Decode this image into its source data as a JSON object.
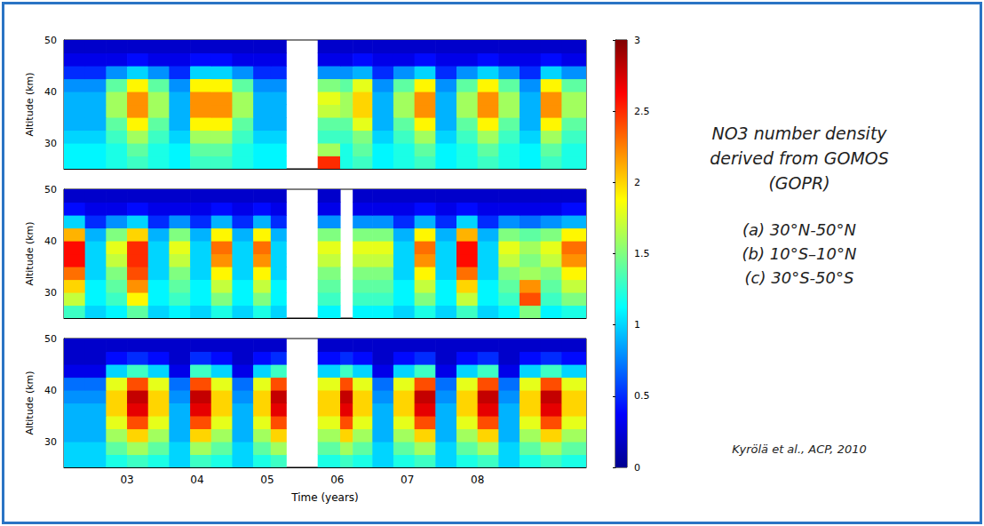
{
  "chart_data": {
    "type": "heatmap",
    "title": "NO3 number density derived from GOMOS (GOPR)",
    "annotations": [
      "Kyrölä et al., ACP, 2010"
    ],
    "xlabel": "Time (years)",
    "ylabel": "Altitude (km)",
    "xlim": [
      2.1,
      9.55
    ],
    "xticks": [
      {
        "value": 3,
        "label": "03"
      },
      {
        "value": 4,
        "label": "04"
      },
      {
        "value": 5,
        "label": "05"
      },
      {
        "value": 6,
        "label": "06"
      },
      {
        "value": 7,
        "label": "07"
      },
      {
        "value": 8,
        "label": "08"
      }
    ],
    "ylim": [
      25,
      50
    ],
    "yticks": [
      30,
      40,
      50
    ],
    "x_edges": [
      2.1,
      2.4,
      2.7,
      3.0,
      3.3,
      3.6,
      3.9,
      4.2,
      4.5,
      4.8,
      5.05,
      5.27,
      5.72,
      6.04,
      6.22,
      6.5,
      6.8,
      7.1,
      7.4,
      7.7,
      8.0,
      8.3,
      8.6,
      8.9,
      9.2,
      9.55
    ],
    "y_edges": [
      25,
      27.5,
      30,
      32.5,
      35,
      37.5,
      40,
      42.5,
      45,
      47.5,
      50
    ],
    "colorbar": {
      "range": [
        0,
        3
      ],
      "ticks": [
        0,
        0.5,
        1,
        1.5,
        2,
        2.5,
        3
      ]
    },
    "panels": [
      {
        "name": "(a) 30°N-50°N",
        "values": [
          [
            1.1,
            1.1,
            1.2,
            1.3,
            1.2,
            1.1,
            1.3,
            1.3,
            1.2,
            1.1,
            1.1,
            null,
            2.5,
            1.2,
            1.3,
            1.1,
            1.2,
            1.3,
            1.1,
            1.2,
            1.3,
            1.2,
            1.1,
            1.3,
            1.2
          ],
          [
            1.1,
            1.1,
            1.2,
            1.4,
            1.2,
            1.1,
            1.4,
            1.4,
            1.2,
            1.1,
            1.1,
            null,
            1.6,
            1.2,
            1.4,
            1.1,
            1.2,
            1.4,
            1.1,
            1.2,
            1.4,
            1.2,
            1.1,
            1.4,
            1.2
          ],
          [
            1.0,
            1.0,
            1.3,
            1.6,
            1.3,
            1.0,
            1.6,
            1.6,
            1.3,
            1.0,
            1.0,
            null,
            1.3,
            1.3,
            1.5,
            1.0,
            1.3,
            1.6,
            1.0,
            1.3,
            1.6,
            1.3,
            1.0,
            1.6,
            1.3
          ],
          [
            0.9,
            0.9,
            1.4,
            1.9,
            1.4,
            0.9,
            1.9,
            1.9,
            1.4,
            0.9,
            0.9,
            null,
            1.4,
            1.4,
            1.8,
            0.9,
            1.4,
            1.9,
            0.9,
            1.4,
            1.9,
            1.4,
            0.9,
            1.9,
            1.4
          ],
          [
            0.9,
            0.9,
            1.6,
            2.2,
            1.6,
            0.9,
            2.2,
            2.2,
            1.6,
            0.9,
            0.9,
            null,
            1.7,
            1.6,
            2.0,
            0.9,
            1.6,
            2.2,
            0.9,
            1.6,
            2.2,
            1.6,
            0.9,
            2.2,
            1.6
          ],
          [
            0.9,
            0.9,
            1.6,
            2.2,
            1.6,
            0.9,
            2.2,
            2.2,
            1.6,
            0.9,
            0.9,
            null,
            1.8,
            1.6,
            2.0,
            0.9,
            1.6,
            2.2,
            0.9,
            1.6,
            2.2,
            1.6,
            0.9,
            2.2,
            1.6
          ],
          [
            0.8,
            0.8,
            1.4,
            1.9,
            1.4,
            0.8,
            1.9,
            1.9,
            1.4,
            0.8,
            0.8,
            null,
            1.5,
            1.4,
            1.8,
            0.8,
            1.4,
            1.9,
            0.8,
            1.4,
            1.9,
            1.4,
            0.8,
            1.9,
            1.4
          ],
          [
            0.5,
            0.5,
            0.8,
            1.0,
            0.8,
            0.5,
            1.0,
            1.0,
            0.8,
            0.5,
            0.5,
            null,
            0.8,
            0.8,
            0.9,
            0.5,
            0.8,
            1.0,
            0.5,
            0.8,
            1.0,
            0.8,
            0.5,
            1.0,
            0.8
          ],
          [
            0.3,
            0.3,
            0.3,
            0.4,
            0.3,
            0.3,
            0.4,
            0.4,
            0.3,
            0.3,
            0.3,
            null,
            0.3,
            0.3,
            0.4,
            0.3,
            0.3,
            0.4,
            0.3,
            0.3,
            0.4,
            0.3,
            0.3,
            0.4,
            0.3
          ],
          [
            0.2,
            0.2,
            0.2,
            0.2,
            0.2,
            0.2,
            0.2,
            0.2,
            0.2,
            0.2,
            0.2,
            null,
            0.2,
            0.2,
            0.2,
            0.2,
            0.2,
            0.2,
            0.2,
            0.2,
            0.2,
            0.2,
            0.2,
            0.2,
            0.2
          ]
        ]
      },
      {
        "name": "(b) 10°S–10°N",
        "values": [
          [
            1.3,
            1.0,
            1.1,
            1.4,
            1.0,
            1.1,
            1.0,
            1.2,
            1.0,
            1.2,
            1.0,
            null,
            1.1,
            null,
            1.1,
            1.1,
            1.0,
            1.2,
            1.0,
            1.3,
            1.0,
            1.1,
            1.5,
            1.1,
            1.2
          ],
          [
            1.7,
            1.1,
            1.3,
            1.9,
            1.1,
            1.3,
            1.1,
            1.5,
            1.1,
            1.5,
            1.1,
            null,
            1.3,
            null,
            1.3,
            1.3,
            1.1,
            1.5,
            1.1,
            1.7,
            1.1,
            1.3,
            2.4,
            1.3,
            1.5
          ],
          [
            2.0,
            1.1,
            1.4,
            2.2,
            1.1,
            1.4,
            1.1,
            1.7,
            1.1,
            1.7,
            1.1,
            null,
            1.4,
            null,
            1.4,
            1.4,
            1.1,
            1.7,
            1.1,
            2.0,
            1.1,
            1.4,
            2.2,
            1.4,
            1.7
          ],
          [
            2.3,
            1.0,
            1.5,
            2.4,
            1.0,
            1.5,
            1.0,
            1.9,
            1.0,
            1.9,
            1.0,
            null,
            1.5,
            null,
            1.5,
            1.5,
            1.0,
            1.9,
            1.0,
            2.3,
            1.0,
            1.5,
            1.6,
            1.5,
            1.9
          ],
          [
            2.6,
            1.0,
            1.7,
            2.5,
            1.0,
            1.7,
            1.0,
            2.2,
            1.0,
            2.2,
            1.0,
            null,
            1.7,
            null,
            1.7,
            1.7,
            1.0,
            2.2,
            1.0,
            2.6,
            1.0,
            1.7,
            1.5,
            1.7,
            2.2
          ],
          [
            2.6,
            1.0,
            1.8,
            2.5,
            1.0,
            1.8,
            1.0,
            2.3,
            1.0,
            2.3,
            1.0,
            null,
            1.8,
            null,
            1.8,
            1.8,
            1.0,
            2.3,
            1.0,
            2.6,
            1.0,
            1.8,
            1.6,
            1.8,
            2.3
          ],
          [
            2.1,
            0.9,
            1.5,
            2.0,
            0.9,
            1.5,
            0.9,
            1.9,
            0.9,
            1.9,
            0.9,
            null,
            1.5,
            null,
            1.5,
            1.5,
            0.9,
            1.9,
            0.9,
            2.1,
            0.9,
            1.5,
            1.4,
            1.5,
            1.9
          ],
          [
            1.0,
            0.5,
            0.8,
            1.0,
            0.5,
            0.8,
            0.5,
            0.9,
            0.5,
            0.9,
            0.5,
            null,
            0.8,
            null,
            0.8,
            0.8,
            0.5,
            0.9,
            0.5,
            1.0,
            0.5,
            0.8,
            0.7,
            0.8,
            0.9
          ],
          [
            0.4,
            0.3,
            0.3,
            0.4,
            0.3,
            0.3,
            0.3,
            0.4,
            0.3,
            0.4,
            0.3,
            null,
            0.3,
            null,
            0.3,
            0.3,
            0.3,
            0.4,
            0.3,
            0.4,
            0.3,
            0.3,
            0.3,
            0.3,
            0.4
          ],
          [
            0.2,
            0.2,
            0.2,
            0.2,
            0.2,
            0.2,
            0.2,
            0.2,
            0.2,
            0.2,
            0.2,
            null,
            0.2,
            null,
            0.2,
            0.2,
            0.2,
            0.2,
            0.2,
            0.2,
            0.2,
            0.2,
            0.2,
            0.2,
            0.2
          ]
        ]
      },
      {
        "name": "(c) 30°S-50°S",
        "values": [
          [
            1.0,
            1.0,
            1.2,
            1.3,
            1.2,
            1.0,
            1.3,
            1.2,
            1.0,
            1.2,
            1.3,
            null,
            1.2,
            1.3,
            1.2,
            1.0,
            1.2,
            1.3,
            1.0,
            1.2,
            1.3,
            1.0,
            1.2,
            1.3,
            1.2
          ],
          [
            1.0,
            1.0,
            1.4,
            1.6,
            1.4,
            1.0,
            1.6,
            1.4,
            1.0,
            1.4,
            1.6,
            null,
            1.4,
            1.6,
            1.4,
            1.0,
            1.4,
            1.6,
            1.0,
            1.4,
            1.6,
            1.0,
            1.4,
            1.6,
            1.4
          ],
          [
            0.9,
            0.9,
            1.6,
            2.0,
            1.6,
            0.9,
            2.0,
            1.6,
            0.9,
            1.6,
            2.0,
            null,
            1.6,
            2.0,
            1.6,
            0.9,
            1.6,
            2.0,
            0.9,
            1.6,
            2.0,
            0.9,
            1.6,
            2.0,
            1.6
          ],
          [
            0.9,
            0.9,
            1.8,
            2.4,
            1.8,
            0.9,
            2.4,
            1.8,
            0.9,
            1.8,
            2.4,
            null,
            1.8,
            2.4,
            1.8,
            0.9,
            1.8,
            2.4,
            0.9,
            1.8,
            2.4,
            0.9,
            1.8,
            2.4,
            1.8
          ],
          [
            0.9,
            0.9,
            2.0,
            2.7,
            2.0,
            0.9,
            2.7,
            2.0,
            0.9,
            2.0,
            2.7,
            null,
            2.0,
            2.7,
            2.0,
            0.9,
            2.0,
            2.7,
            0.9,
            2.0,
            2.7,
            0.9,
            2.0,
            2.7,
            2.0
          ],
          [
            0.8,
            0.8,
            2.0,
            2.8,
            2.0,
            0.8,
            2.8,
            2.0,
            0.8,
            2.0,
            2.8,
            null,
            2.0,
            2.8,
            2.0,
            0.8,
            2.0,
            2.8,
            0.8,
            2.0,
            2.8,
            0.8,
            2.0,
            2.8,
            2.0
          ],
          [
            0.7,
            0.7,
            1.8,
            2.4,
            1.8,
            0.7,
            2.4,
            1.8,
            0.7,
            1.8,
            2.4,
            null,
            1.8,
            2.4,
            1.8,
            0.7,
            1.8,
            2.4,
            0.7,
            1.8,
            2.4,
            0.7,
            1.8,
            2.4,
            1.8
          ],
          [
            0.3,
            0.3,
            1.0,
            1.3,
            1.0,
            0.3,
            1.3,
            1.0,
            0.3,
            1.0,
            1.3,
            null,
            1.0,
            1.3,
            1.0,
            0.3,
            1.0,
            1.3,
            0.3,
            1.0,
            1.3,
            0.3,
            1.0,
            1.3,
            1.0
          ],
          [
            0.2,
            0.2,
            0.4,
            0.5,
            0.4,
            0.2,
            0.5,
            0.4,
            0.2,
            0.4,
            0.5,
            null,
            0.4,
            0.5,
            0.4,
            0.2,
            0.4,
            0.5,
            0.2,
            0.4,
            0.5,
            0.2,
            0.4,
            0.5,
            0.4
          ],
          [
            0.2,
            0.2,
            0.2,
            0.2,
            0.2,
            0.2,
            0.2,
            0.2,
            0.2,
            0.2,
            0.2,
            null,
            0.2,
            0.2,
            0.2,
            0.2,
            0.2,
            0.2,
            0.2,
            0.2,
            0.2,
            0.2,
            0.2,
            0.2,
            0.2
          ]
        ]
      }
    ]
  }
}
